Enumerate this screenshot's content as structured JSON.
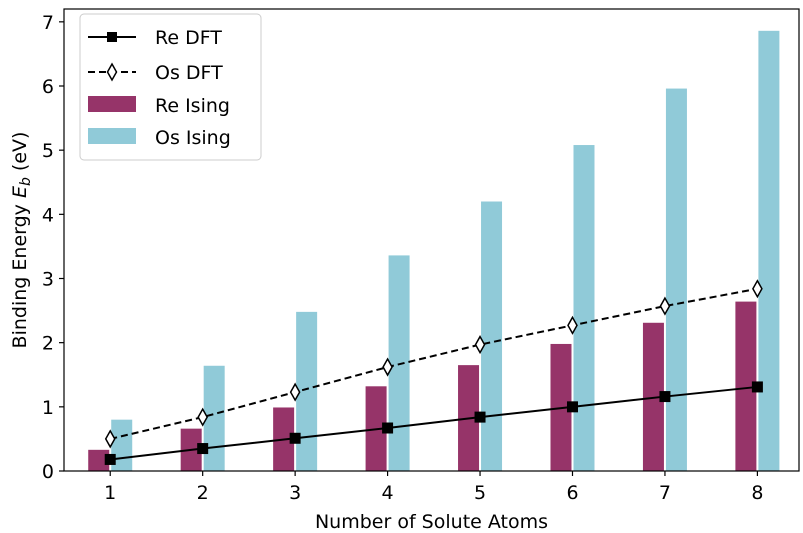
{
  "chart_data": {
    "type": "bar",
    "title": "",
    "xlabel": "Number of Solute Atoms",
    "ylabel": "Binding Energy E_b (eV)",
    "ylabel_parts": {
      "main": "Binding Energy ",
      "symbol": "E",
      "subscript": "b",
      "unit": " (eV)"
    },
    "x": [
      1,
      2,
      3,
      4,
      5,
      6,
      7,
      8
    ],
    "xlim": [
      0.5,
      8.45
    ],
    "ylim": [
      0,
      7.2
    ],
    "yticks": [
      0,
      1,
      2,
      3,
      4,
      5,
      6,
      7
    ],
    "xticks": [
      1,
      2,
      3,
      4,
      5,
      6,
      7,
      8
    ],
    "grid": false,
    "legend_position": "top-left",
    "series": [
      {
        "name": "Re DFT",
        "kind": "line",
        "style": "solid",
        "marker": "square",
        "color": "#000000",
        "values": [
          0.18,
          0.35,
          0.51,
          0.67,
          0.84,
          1.0,
          1.16,
          1.31
        ]
      },
      {
        "name": "Os DFT",
        "kind": "line",
        "style": "dashed",
        "marker": "thin-diamond",
        "color": "#000000",
        "values": [
          0.5,
          0.84,
          1.23,
          1.62,
          1.97,
          2.27,
          2.57,
          2.84
        ]
      },
      {
        "name": "Re Ising",
        "kind": "bar",
        "color": "#963469",
        "values": [
          0.33,
          0.66,
          0.99,
          1.32,
          1.65,
          1.98,
          2.31,
          2.64
        ]
      },
      {
        "name": "Os Ising",
        "kind": "bar",
        "color": "#90CAD8",
        "values": [
          0.8,
          1.64,
          2.48,
          3.36,
          4.2,
          5.08,
          5.96,
          6.86
        ]
      }
    ]
  }
}
